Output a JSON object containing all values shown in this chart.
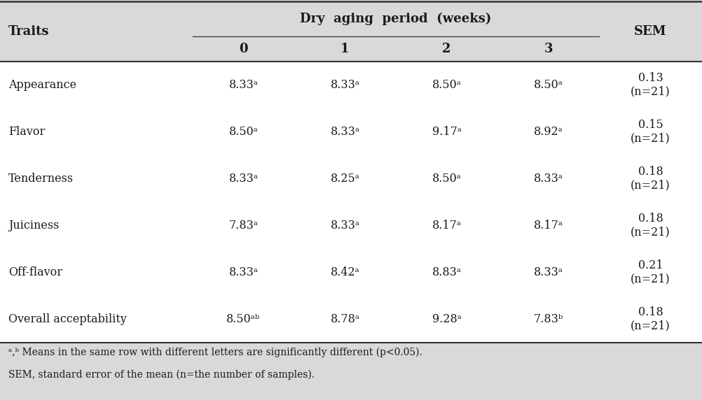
{
  "title": "Dry  aging  period  (weeks)",
  "col_headers": [
    "0",
    "1",
    "2",
    "3"
  ],
  "sem_header": "SEM",
  "traits_header": "Traits",
  "rows": [
    {
      "trait": "Appearance",
      "values": [
        "8.33ᵃ",
        "8.33ᵃ",
        "8.50ᵃ",
        "8.50ᵃ"
      ],
      "sem": "0.13\n(n=21)"
    },
    {
      "trait": "Flavor",
      "values": [
        "8.50ᵃ",
        "8.33ᵃ",
        "9.17ᵃ",
        "8.92ᵃ"
      ],
      "sem": "0.15\n(n=21)"
    },
    {
      "trait": "Tenderness",
      "values": [
        "8.33ᵃ",
        "8.25ᵃ",
        "8.50ᵃ",
        "8.33ᵃ"
      ],
      "sem": "0.18\n(n=21)"
    },
    {
      "trait": "Juiciness",
      "values": [
        "7.83ᵃ",
        "8.33ᵃ",
        "8.17ᵃ",
        "8.17ᵃ"
      ],
      "sem": "0.18\n(n=21)"
    },
    {
      "trait": "Off-flavor",
      "values": [
        "8.33ᵃ",
        "8.42ᵃ",
        "8.83ᵃ",
        "8.33ᵃ"
      ],
      "sem": "0.21\n(n=21)"
    },
    {
      "trait": "Overall acceptability",
      "values": [
        "8.50ᵃᵇ",
        "8.78ᵃ",
        "9.28ᵃ",
        "7.83ᵇ"
      ],
      "sem": "0.18\n(n=21)"
    }
  ],
  "footnote1": "ᵃ,ᵇ Means in the same row with different letters are significantly different (p<0.05).",
  "footnote2": "SEM, standard error of the mean (n=the number of samples).",
  "bg_color": "#d9d9d9",
  "body_bg": "#ffffff",
  "text_color": "#000000",
  "font_size": 11.5,
  "header_font_size": 13
}
